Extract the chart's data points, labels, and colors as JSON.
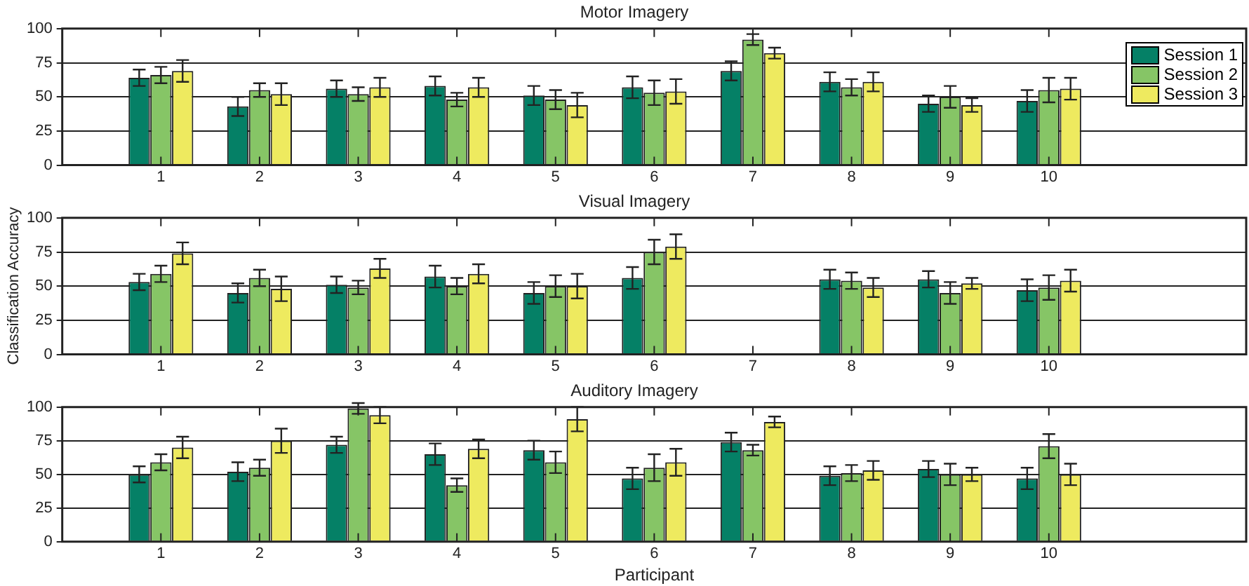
{
  "chart_data": [
    {
      "type": "bar",
      "title": "Motor Imagery",
      "x": [
        1,
        2,
        3,
        4,
        5,
        6,
        7,
        8,
        9,
        10
      ],
      "xlim": [
        0,
        12
      ],
      "xticks": [
        1,
        2,
        3,
        4,
        5,
        6,
        7,
        8,
        9,
        10
      ],
      "ylim": [
        0,
        100
      ],
      "yticks": [
        0,
        25,
        50,
        75,
        100
      ],
      "grid": "y",
      "legend": "top right",
      "series": [
        {
          "name": "Session 1",
          "color": "#058066",
          "values": [
            64,
            43,
            56,
            58,
            51,
            57,
            69,
            61,
            45,
            47
          ],
          "errors": [
            6,
            7,
            6,
            7,
            7,
            8,
            7,
            7,
            6,
            8
          ]
        },
        {
          "name": "Session 2",
          "color": "#86c566",
          "values": [
            66,
            55,
            52,
            48,
            48,
            53,
            92,
            57,
            50,
            55
          ],
          "errors": [
            6,
            5,
            5,
            5,
            7,
            9,
            4,
            6,
            8,
            9
          ]
        },
        {
          "name": "Session 3",
          "color": "#eeea5f",
          "values": [
            69,
            52,
            57,
            57,
            44,
            54,
            82,
            61,
            44,
            56
          ],
          "errors": [
            8,
            8,
            7,
            7,
            9,
            9,
            4,
            7,
            5,
            8
          ]
        }
      ]
    },
    {
      "type": "bar",
      "title": "Visual Imagery",
      "ylabel": "Classification Accuracy",
      "x": [
        1,
        2,
        3,
        4,
        5,
        6,
        7,
        8,
        9,
        10
      ],
      "xlim": [
        0,
        12
      ],
      "xticks": [
        1,
        2,
        3,
        4,
        5,
        6,
        7,
        8,
        9,
        10
      ],
      "ylim": [
        0,
        100
      ],
      "yticks": [
        0,
        25,
        50,
        75,
        100
      ],
      "grid": "y",
      "series": [
        {
          "color": "#058066",
          "values": [
            53,
            45,
            51,
            57,
            45,
            56,
            null,
            55,
            55,
            47
          ],
          "errors": [
            6,
            7,
            6,
            8,
            8,
            8,
            null,
            7,
            6,
            8
          ]
        },
        {
          "color": "#86c566",
          "values": [
            59,
            56,
            49,
            50,
            50,
            75,
            null,
            54,
            45,
            49
          ],
          "errors": [
            6,
            6,
            5,
            6,
            8,
            9,
            null,
            6,
            8,
            9
          ]
        },
        {
          "color": "#eeea5f",
          "values": [
            74,
            48,
            63,
            59,
            50,
            79,
            null,
            49,
            52,
            54
          ],
          "errors": [
            8,
            9,
            7,
            7,
            9,
            9,
            null,
            7,
            4,
            8
          ]
        }
      ]
    },
    {
      "type": "bar",
      "title": "Auditory Imagery",
      "xlabel": "Participant",
      "x": [
        1,
        2,
        3,
        4,
        5,
        6,
        7,
        8,
        9,
        10
      ],
      "xlim": [
        0,
        12
      ],
      "xticks": [
        1,
        2,
        3,
        4,
        5,
        6,
        7,
        8,
        9,
        10
      ],
      "ylim": [
        0,
        100
      ],
      "yticks": [
        0,
        25,
        50,
        75,
        100
      ],
      "grid": "y",
      "series": [
        {
          "color": "#058066",
          "values": [
            50,
            52,
            72,
            65,
            68,
            47,
            74,
            49,
            54,
            47
          ],
          "errors": [
            6,
            7,
            6,
            8,
            7,
            8,
            7,
            7,
            6,
            8
          ]
        },
        {
          "color": "#86c566",
          "values": [
            59,
            55,
            99,
            42,
            59,
            55,
            68,
            51,
            50,
            71
          ],
          "errors": [
            6,
            6,
            4,
            5,
            8,
            10,
            4,
            6,
            8,
            9
          ]
        },
        {
          "color": "#eeea5f",
          "values": [
            70,
            75,
            94,
            69,
            91,
            59,
            89,
            53,
            50,
            50
          ],
          "errors": [
            8,
            9,
            6,
            7,
            9,
            10,
            4,
            7,
            5,
            8
          ]
        }
      ]
    }
  ]
}
